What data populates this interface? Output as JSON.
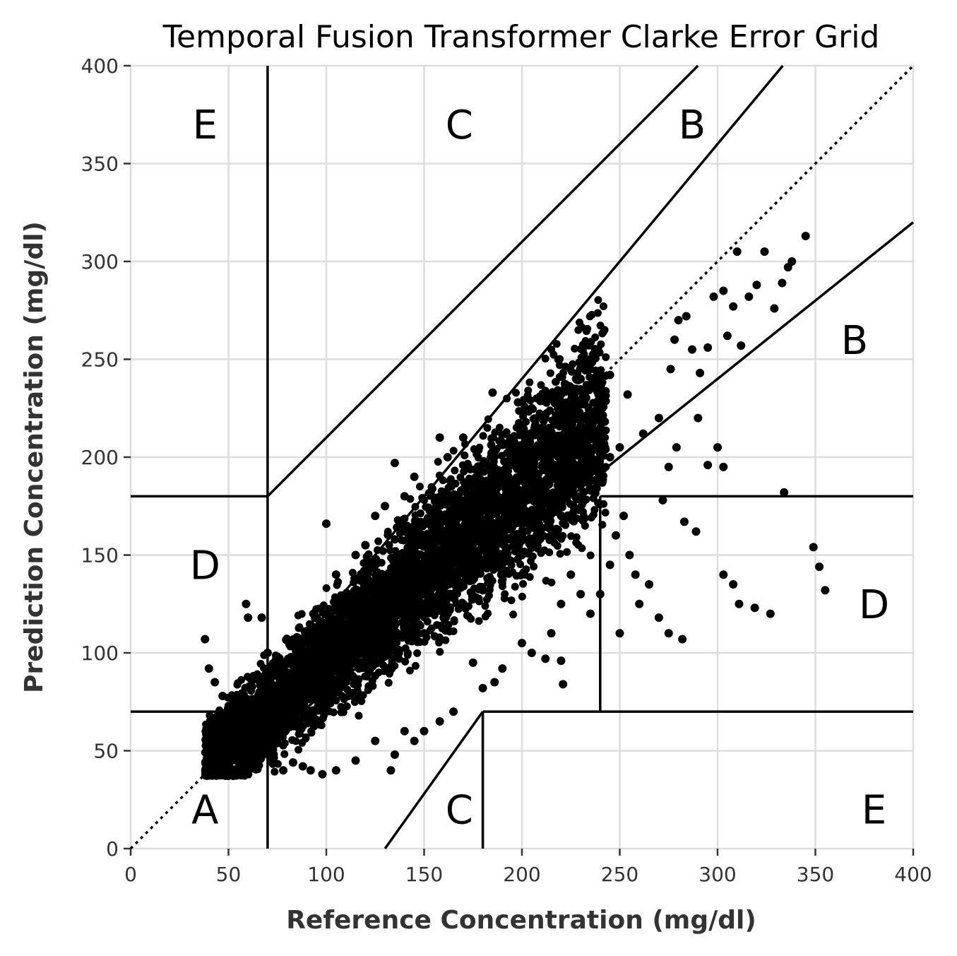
{
  "chart_data": {
    "type": "scatter",
    "title": "Temporal Fusion Transformer Clarke Error Grid",
    "xlabel": "Reference Concentration (mg/dl)",
    "ylabel": "Prediction Concentration (mg/dl)",
    "xlim": [
      0,
      400
    ],
    "ylim": [
      0,
      400
    ],
    "x_ticks": [
      0,
      50,
      100,
      150,
      200,
      250,
      300,
      350,
      400
    ],
    "y_ticks": [
      0,
      50,
      100,
      150,
      200,
      250,
      300,
      350,
      400
    ],
    "grid": true,
    "point_color": "#000000",
    "identity_line": {
      "from": [
        0,
        0
      ],
      "to": [
        400,
        400
      ],
      "style": "dotted"
    },
    "zone_boundaries": [
      {
        "points": [
          [
            70,
            0
          ],
          [
            70,
            400
          ]
        ]
      },
      {
        "points": [
          [
            0,
            180
          ],
          [
            70,
            180
          ]
        ]
      },
      {
        "points": [
          [
            70,
            180
          ],
          [
            290,
            400
          ]
        ]
      },
      {
        "points": [
          [
            0,
            70
          ],
          [
            58.33,
            70
          ]
        ]
      },
      {
        "points": [
          [
            70,
            56
          ],
          [
            400,
            320
          ]
        ]
      },
      {
        "points": [
          [
            58.33,
            70
          ],
          [
            333.33,
            400
          ]
        ]
      },
      {
        "points": [
          [
            130,
            0
          ],
          [
            180,
            70
          ]
        ]
      },
      {
        "points": [
          [
            180,
            70
          ],
          [
            400,
            70
          ]
        ]
      },
      {
        "points": [
          [
            180,
            0
          ],
          [
            180,
            70
          ]
        ]
      },
      {
        "points": [
          [
            240,
            70
          ],
          [
            240,
            180
          ]
        ]
      },
      {
        "points": [
          [
            240,
            180
          ],
          [
            400,
            180
          ]
        ]
      }
    ],
    "zone_labels": [
      {
        "text": "A",
        "x": 38,
        "y": 20
      },
      {
        "text": "B",
        "x": 370,
        "y": 260
      },
      {
        "text": "B",
        "x": 287,
        "y": 370
      },
      {
        "text": "C",
        "x": 168,
        "y": 370
      },
      {
        "text": "C",
        "x": 168,
        "y": 20
      },
      {
        "text": "D",
        "x": 38,
        "y": 145
      },
      {
        "text": "D",
        "x": 380,
        "y": 125
      },
      {
        "text": "E",
        "x": 38,
        "y": 370
      },
      {
        "text": "E",
        "x": 380,
        "y": 20
      }
    ],
    "points": [
      [
        40,
        40
      ],
      [
        42,
        45
      ],
      [
        45,
        55
      ],
      [
        48,
        65
      ],
      [
        50,
        72
      ],
      [
        38,
        107
      ],
      [
        59,
        125
      ],
      [
        60,
        118
      ],
      [
        67,
        118
      ],
      [
        70,
        100
      ],
      [
        75,
        90
      ],
      [
        80,
        85
      ],
      [
        85,
        95
      ],
      [
        90,
        100
      ],
      [
        95,
        110
      ],
      [
        100,
        166
      ],
      [
        105,
        140
      ],
      [
        110,
        130
      ],
      [
        115,
        150
      ],
      [
        120,
        155
      ],
      [
        125,
        170
      ],
      [
        130,
        175
      ],
      [
        135,
        197
      ],
      [
        140,
        180
      ],
      [
        145,
        190
      ],
      [
        158,
        210
      ],
      [
        162,
        200
      ],
      [
        170,
        210
      ],
      [
        185,
        233
      ],
      [
        198,
        228
      ],
      [
        205,
        225
      ],
      [
        210,
        220
      ],
      [
        220,
        232
      ],
      [
        225,
        235
      ],
      [
        230,
        240
      ],
      [
        235,
        245
      ],
      [
        245,
        242
      ],
      [
        254,
        232
      ],
      [
        262,
        212
      ],
      [
        270,
        220
      ],
      [
        276,
        245
      ],
      [
        278,
        260
      ],
      [
        280,
        270
      ],
      [
        284,
        272
      ],
      [
        287,
        255
      ],
      [
        291,
        243
      ],
      [
        295,
        256
      ],
      [
        298,
        282
      ],
      [
        303,
        285
      ],
      [
        305,
        262
      ],
      [
        308,
        277
      ],
      [
        310,
        305
      ],
      [
        312,
        257
      ],
      [
        316,
        282
      ],
      [
        320,
        288
      ],
      [
        324,
        305
      ],
      [
        329,
        276
      ],
      [
        333,
        289
      ],
      [
        336,
        297
      ],
      [
        338,
        300
      ],
      [
        345,
        313
      ],
      [
        334,
        182
      ],
      [
        349,
        154
      ],
      [
        352,
        144
      ],
      [
        355,
        132
      ],
      [
        327,
        120
      ],
      [
        319,
        123
      ],
      [
        311,
        125
      ],
      [
        308,
        135
      ],
      [
        303,
        140
      ],
      [
        282,
        107
      ],
      [
        289,
        162
      ],
      [
        283,
        167
      ],
      [
        272,
        178
      ],
      [
        275,
        195
      ],
      [
        279,
        205
      ],
      [
        295,
        196
      ],
      [
        303,
        195
      ],
      [
        300,
        205
      ],
      [
        290,
        220
      ],
      [
        240,
        130
      ],
      [
        245,
        145
      ],
      [
        248,
        160
      ],
      [
        252,
        170
      ],
      [
        255,
        150
      ],
      [
        258,
        140
      ],
      [
        260,
        125
      ],
      [
        265,
        135
      ],
      [
        270,
        118
      ],
      [
        275,
        110
      ],
      [
        250,
        110
      ],
      [
        235,
        120
      ],
      [
        230,
        130
      ],
      [
        225,
        140
      ],
      [
        220,
        125
      ],
      [
        215,
        110
      ],
      [
        221,
        84
      ],
      [
        220,
        96
      ],
      [
        212,
        97
      ],
      [
        205,
        100
      ],
      [
        200,
        105
      ],
      [
        190,
        92
      ],
      [
        186,
        85
      ],
      [
        180,
        82
      ],
      [
        175,
        95
      ],
      [
        165,
        70
      ],
      [
        158,
        65
      ],
      [
        150,
        60
      ],
      [
        145,
        55
      ],
      [
        140,
        60
      ],
      [
        133,
        40
      ],
      [
        135,
        48
      ],
      [
        125,
        55
      ],
      [
        115,
        45
      ],
      [
        105,
        40
      ],
      [
        98,
        38
      ],
      [
        92,
        40
      ],
      [
        88,
        42
      ],
      [
        83,
        44
      ],
      [
        78,
        40
      ],
      [
        72,
        45
      ],
      [
        66,
        50
      ],
      [
        62,
        55
      ],
      [
        56,
        60
      ],
      [
        52,
        68
      ],
      [
        47,
        78
      ],
      [
        43,
        85
      ],
      [
        40,
        92
      ],
      [
        55,
        78
      ],
      [
        65,
        88
      ],
      [
        75,
        98
      ],
      [
        85,
        108
      ],
      [
        95,
        118
      ],
      [
        105,
        128
      ],
      [
        115,
        138
      ],
      [
        125,
        148
      ],
      [
        135,
        158
      ],
      [
        145,
        165
      ],
      [
        155,
        172
      ],
      [
        165,
        180
      ],
      [
        175,
        188
      ],
      [
        185,
        195
      ],
      [
        195,
        200
      ],
      [
        205,
        205
      ],
      [
        215,
        212
      ],
      [
        225,
        218
      ],
      [
        235,
        222
      ],
      [
        240,
        230
      ],
      [
        150,
        110
      ],
      [
        160,
        118
      ],
      [
        170,
        125
      ],
      [
        180,
        132
      ],
      [
        190,
        140
      ],
      [
        200,
        150
      ],
      [
        210,
        160
      ],
      [
        220,
        170
      ],
      [
        230,
        180
      ],
      [
        240,
        190
      ],
      [
        245,
        200
      ],
      [
        250,
        205
      ],
      [
        100,
        80
      ],
      [
        110,
        90
      ],
      [
        120,
        100
      ],
      [
        130,
        108
      ],
      [
        140,
        115
      ],
      [
        150,
        125
      ],
      [
        160,
        135
      ],
      [
        170,
        145
      ],
      [
        180,
        155
      ],
      [
        190,
        165
      ],
      [
        200,
        175
      ],
      [
        210,
        185
      ]
    ]
  }
}
